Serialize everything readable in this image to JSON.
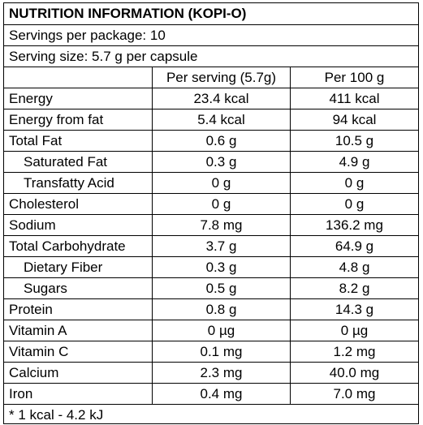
{
  "title": "NUTRITION INFORMATION (KOPI-O)",
  "servings_per_package": "Servings per package: 10",
  "serving_size": "Serving size: 5.7 g per capsule",
  "headers": {
    "nutrient": "",
    "per_serving": "Per serving (5.7g)",
    "per_100g": "Per 100 g"
  },
  "rows": [
    {
      "label": "Energy",
      "per_serving": "23.4 kcal",
      "per_100g": "411 kcal"
    },
    {
      "label": "Energy from fat",
      "per_serving": "5.4 kcal",
      "per_100g": "94 kcal"
    },
    {
      "label": "Total Fat",
      "per_serving": "0.6 g",
      "per_100g": "10.5 g"
    },
    {
      "label": "Saturated Fat",
      "per_serving": "0.3 g",
      "per_100g": "4.9 g"
    },
    {
      "label": "Transfatty Acid",
      "per_serving": "0 g",
      "per_100g": "0 g"
    },
    {
      "label": "Cholesterol",
      "per_serving": "0 g",
      "per_100g": "0 g"
    },
    {
      "label": "Sodium",
      "per_serving": "7.8 mg",
      "per_100g": "136.2 mg"
    },
    {
      "label": "Total Carbohydrate",
      "per_serving": "3.7 g",
      "per_100g": "64.9 g"
    },
    {
      "label": "Dietary Fiber",
      "per_serving": "0.3 g",
      "per_100g": "4.8 g"
    },
    {
      "label": "Sugars",
      "per_serving": "0.5 g",
      "per_100g": "8.2 g"
    },
    {
      "label": "Protein",
      "per_serving": "0.8 g",
      "per_100g": "14.3 g"
    },
    {
      "label": "Vitamin A",
      "per_serving": "0 µg",
      "per_100g": "0 µg"
    },
    {
      "label": "Vitamin C",
      "per_serving": "0.1 mg",
      "per_100g": "1.2 mg"
    },
    {
      "label": "Calcium",
      "per_serving": "2.3 mg",
      "per_100g": "40.0 mg"
    },
    {
      "label": "Iron",
      "per_serving": "0.4 mg",
      "per_100g": "7.0 mg"
    }
  ],
  "footnote": "* 1 kcal - 4.2 kJ"
}
